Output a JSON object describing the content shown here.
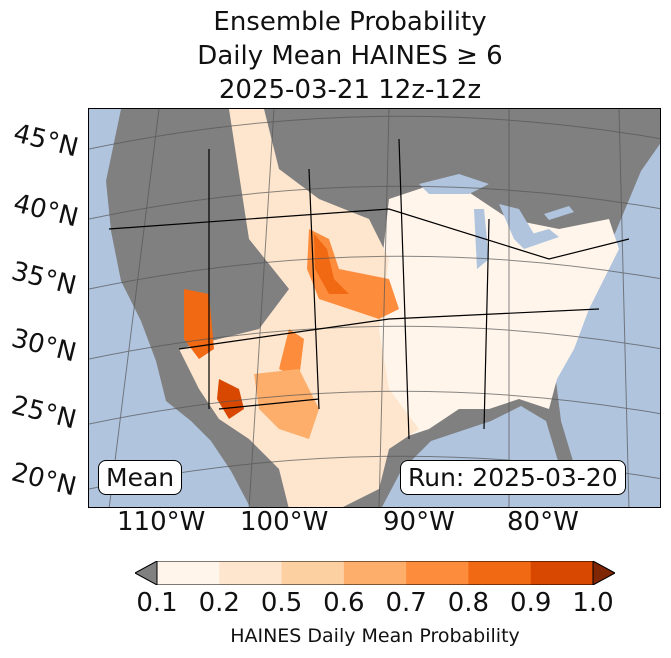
{
  "title": {
    "line1": "Ensemble Probability",
    "line2": "Daily Mean HAINES ≥ 6",
    "line3": "2025-03-21 12z-12z"
  },
  "lat_labels": [
    "45°N",
    "40°N",
    "35°N",
    "30°N",
    "25°N",
    "20°N"
  ],
  "lon_labels": [
    "110°W",
    "100°W",
    "90°W",
    "80°W"
  ],
  "mean_label": "Mean",
  "run_label": "Run: 2025-03-20",
  "colorbar": {
    "ticks": [
      "0.1",
      "0.2",
      "0.5",
      "0.6",
      "0.7",
      "0.8",
      "0.9",
      "1.0"
    ],
    "label": "HAINES Daily Mean Probability",
    "colors": [
      "#fff5eb",
      "#fee6ce",
      "#fdd0a2",
      "#fdae6b",
      "#fd8d3c",
      "#f16913",
      "#d94801"
    ],
    "under_color": "#808080",
    "over_color": "#7f2704"
  },
  "colors": {
    "ocean": "#b0c4de",
    "land_below": "#808080"
  }
}
